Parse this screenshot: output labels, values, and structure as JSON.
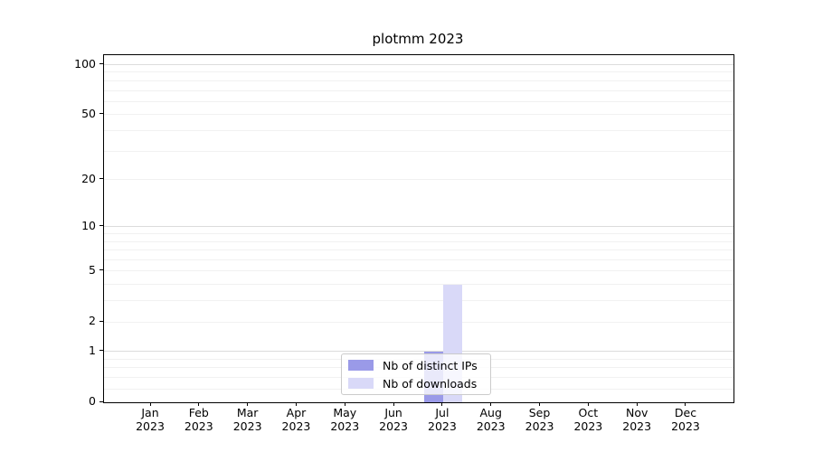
{
  "chart_data": {
    "type": "bar",
    "title": "plotmm 2023",
    "categories": [
      "Jan",
      "Feb",
      "Mar",
      "Apr",
      "May",
      "Jun",
      "Jul",
      "Aug",
      "Sep",
      "Oct",
      "Nov",
      "Dec"
    ],
    "x_tick_year": "2023",
    "series": [
      {
        "name": "Nb of distinct IPs",
        "color": "#9a9ae8",
        "values": [
          0,
          0,
          0,
          0,
          0,
          0,
          1,
          0,
          0,
          0,
          0,
          0
        ]
      },
      {
        "name": "Nb of downloads",
        "color": "#d9d9f8",
        "values": [
          0,
          0,
          0,
          0,
          0,
          0,
          4,
          0,
          0,
          0,
          0,
          0
        ]
      }
    ],
    "yscale": "log1p",
    "ylim": [
      0,
      114
    ],
    "y_ticks": [
      0,
      1,
      2,
      5,
      10,
      20,
      50,
      100
    ],
    "grid": {
      "major_values": [
        1,
        10,
        100
      ],
      "minor_values": [
        0.2,
        0.4,
        0.6,
        0.8,
        2,
        3,
        4,
        5,
        6,
        7,
        8,
        9,
        20,
        30,
        40,
        50,
        60,
        70,
        80,
        90
      ],
      "major_color": "#dcdcdc",
      "minor_color": "#f1f1f1"
    },
    "legend": {
      "position": "lower center"
    },
    "colors": {
      "axis": "#000000",
      "text": "#000000",
      "background": "#ffffff"
    }
  }
}
